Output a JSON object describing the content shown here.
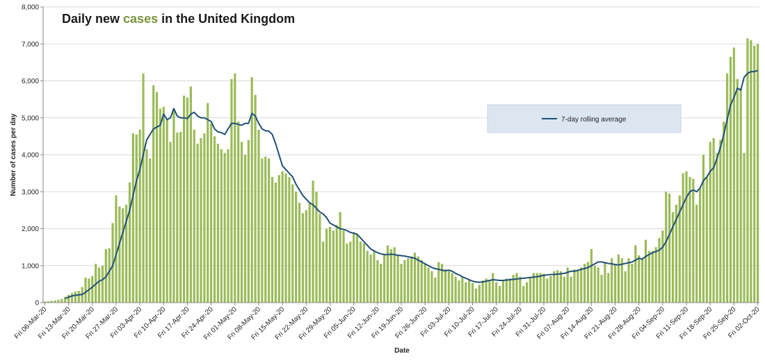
{
  "chart_data": {
    "type": "bar",
    "title_parts": [
      "Daily new ",
      "cases",
      " in the United Kingdom"
    ],
    "title_colors": [
      "#1a1a1a",
      "#77933c",
      "#1a1a1a"
    ],
    "x_label": "Date",
    "y_label": "Number of cases per day",
    "ylim": [
      0,
      8000
    ],
    "yticks": [
      0,
      {
        "value": 1000,
        "label": "1,000"
      },
      {
        "value": 2000,
        "label": "2,000"
      },
      {
        "value": 3000,
        "label": "3,000"
      },
      {
        "value": 4000,
        "label": "4,000"
      },
      {
        "value": 5000,
        "label": "5,000"
      },
      {
        "value": 6000,
        "label": "6,000"
      },
      {
        "value": 7000,
        "label": "7,000"
      },
      {
        "value": 8000,
        "label": "8,000"
      }
    ],
    "grid": true,
    "legend": "upper right",
    "categories": [
      "Fri 06-Mar-20",
      null,
      null,
      null,
      null,
      null,
      null,
      "Fri 13-Mar-20",
      null,
      null,
      null,
      null,
      null,
      null,
      "Fri 20-Mar-20",
      null,
      null,
      null,
      null,
      null,
      null,
      "Fri 27-Mar-20",
      null,
      null,
      null,
      null,
      null,
      null,
      "Fri 03-Apr-20",
      null,
      null,
      null,
      null,
      null,
      null,
      "Fri 10-Apr-20",
      null,
      null,
      null,
      null,
      null,
      null,
      "Fri 17-Apr-20",
      null,
      null,
      null,
      null,
      null,
      null,
      "Fri 24-Apr-20",
      null,
      null,
      null,
      null,
      null,
      null,
      "Fri 01-May-20",
      null,
      null,
      null,
      null,
      null,
      null,
      "Fri 08-May-20",
      null,
      null,
      null,
      null,
      null,
      null,
      "Fri 15-May-20",
      null,
      null,
      null,
      null,
      null,
      null,
      "Fri 22-May-20",
      null,
      null,
      null,
      null,
      null,
      null,
      "Fri 29-May-20",
      null,
      null,
      null,
      null,
      null,
      null,
      "Fri 05-Jun-20",
      null,
      null,
      null,
      null,
      null,
      null,
      "Fri 12-Jun-20",
      null,
      null,
      null,
      null,
      null,
      null,
      "Fri 19-Jun-20",
      null,
      null,
      null,
      null,
      null,
      null,
      "Fri 26-Jun-20",
      null,
      null,
      null,
      null,
      null,
      null,
      "Fri 03-Jul-20",
      null,
      null,
      null,
      null,
      null,
      null,
      "Fri 10-Jul-20",
      null,
      null,
      null,
      null,
      null,
      null,
      "Fri 17-Jul-20",
      null,
      null,
      null,
      null,
      null,
      null,
      "Fri 24-Jul-20",
      null,
      null,
      null,
      null,
      null,
      null,
      "Fri 31-Jul-20",
      null,
      null,
      null,
      null,
      null,
      null,
      "Fri 07-Aug-20",
      null,
      null,
      null,
      null,
      null,
      null,
      "Fri 14-Aug-20",
      null,
      null,
      null,
      null,
      null,
      null,
      "Fri 21-Aug-20",
      null,
      null,
      null,
      null,
      null,
      null,
      "Fri 28-Aug-20",
      null,
      null,
      null,
      null,
      null,
      null,
      "Fri 04-Sep-20",
      null,
      null,
      null,
      null,
      null,
      null,
      "Fri 11-Sep-20",
      null,
      null,
      null,
      null,
      null,
      null,
      "Fri 18-Sep-20",
      null,
      null,
      null,
      null,
      null,
      null,
      "Fri 25-Sep-20",
      null,
      null,
      null,
      null,
      null,
      null,
      "Fri 02-Oct-20"
    ],
    "series": [
      {
        "color": "#9bbb59",
        "values": [
          30,
          40,
          50,
          60,
          80,
          100,
          160,
          210,
          260,
          300,
          320,
          420,
          680,
          650,
          720,
          1050,
          950,
          1000,
          1450,
          1470,
          2150,
          2900,
          2600,
          2550,
          2650,
          3250,
          4580,
          4550,
          4680,
          6200,
          4150,
          3900,
          5880,
          5700,
          5250,
          5300,
          4950,
          4350,
          5250,
          4600,
          4620,
          5600,
          5550,
          5850,
          4680,
          4300,
          4450,
          4580,
          5400,
          4850,
          4500,
          4300,
          4150,
          4050,
          4150,
          6050,
          6200,
          4900,
          4350,
          4000,
          4400,
          6100,
          5620,
          4680,
          3900,
          3950,
          3900,
          3400,
          3250,
          3450,
          3550,
          3500,
          3400,
          3200,
          3000,
          2700,
          2420,
          2500,
          2700,
          3300,
          3000,
          2400,
          1650,
          2000,
          2050,
          1950,
          2100,
          2450,
          1950,
          1600,
          1650,
          1900,
          1850,
          1650,
          1600,
          1400,
          1300,
          1380,
          1150,
          1050,
          1300,
          1550,
          1450,
          1500,
          1300,
          1050,
          1150,
          1200,
          1250,
          1350,
          1250,
          1150,
          1050,
          950,
          850,
          680,
          1100,
          1050,
          900,
          850,
          800,
          700,
          600,
          700,
          550,
          620,
          530,
          380,
          480,
          600,
          650,
          620,
          800,
          550,
          450,
          620,
          650,
          650,
          750,
          800,
          700,
          450,
          550,
          680,
          800,
          800,
          800,
          780,
          650,
          720,
          850,
          880,
          850,
          700,
          950,
          700,
          900,
          900,
          950,
          1050,
          1100,
          1450,
          1000,
          950,
          750,
          1100,
          800,
          1200,
          1050,
          1300,
          1200,
          850,
          1200,
          1050,
          1550,
          1280,
          1200,
          1700,
          1400,
          1400,
          1500,
          1750,
          1950,
          3000,
          2950,
          2450,
          2650,
          2900,
          3500,
          3550,
          3400,
          3350,
          2650,
          3100,
          4000,
          3400,
          4350,
          4450,
          4050,
          4400,
          4900,
          6200,
          6650,
          6900,
          6050,
          5800,
          4050,
          7150,
          7100,
          6950,
          7000
        ]
      },
      {
        "name": "7-day rolling average",
        "color": "#1f4e79",
        "line": true,
        "values": [
          null,
          null,
          null,
          null,
          null,
          null,
          110,
          150,
          180,
          200,
          210,
          220,
          280,
          350,
          420,
          500,
          580,
          620,
          700,
          850,
          1000,
          1300,
          1600,
          1900,
          2200,
          2500,
          2900,
          3300,
          3600,
          4000,
          4400,
          4550,
          4700,
          4750,
          4800,
          5100,
          4950,
          5000,
          5250,
          5050,
          5000,
          5000,
          4980,
          5100,
          5150,
          5050,
          5000,
          5000,
          4950,
          4900,
          4700,
          4620,
          4600,
          4550,
          4700,
          4850,
          4850,
          4820,
          4800,
          4850,
          4850,
          5120,
          5050,
          4850,
          4700,
          4650,
          4640,
          4550,
          4300,
          4000,
          3700,
          3600,
          3500,
          3400,
          3200,
          3050,
          2900,
          2800,
          2700,
          2650,
          2550,
          2450,
          2400,
          2300,
          2150,
          2100,
          2050,
          2000,
          1980,
          1950,
          1900,
          1880,
          1850,
          1750,
          1650,
          1550,
          1450,
          1400,
          1350,
          1320,
          1300,
          1300,
          1310,
          1300,
          1280,
          1270,
          1260,
          1240,
          1220,
          1200,
          1150,
          1100,
          1050,
          1000,
          950,
          920,
          900,
          880,
          860,
          880,
          850,
          790,
          750,
          700,
          660,
          620,
          580,
          560,
          550,
          560,
          580,
          600,
          620,
          610,
          600,
          600,
          610,
          620,
          630,
          640,
          650,
          660,
          670,
          680,
          690,
          700,
          720,
          740,
          750,
          760,
          760,
          770,
          780,
          790,
          820,
          850,
          850,
          870,
          900,
          920,
          950,
          1000,
          1050,
          1100,
          1100,
          1080,
          1060,
          1050,
          1030,
          1020,
          1040,
          1060,
          1080,
          1100,
          1150,
          1200,
          1180,
          1250,
          1300,
          1350,
          1380,
          1420,
          1500,
          1650,
          1850,
          2050,
          2250,
          2450,
          2650,
          2850,
          3000,
          3050,
          3000,
          3100,
          3300,
          3400,
          3550,
          3650,
          3900,
          4200,
          4550,
          4950,
          5350,
          5550,
          5800,
          5750,
          6100,
          6200,
          6250,
          6250,
          6280
        ]
      }
    ]
  }
}
